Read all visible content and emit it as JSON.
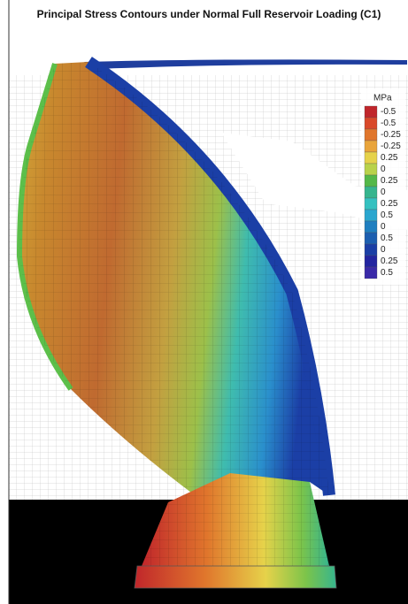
{
  "title": "Principal Stress Contours under Normal Full Reservoir Loading (C1)",
  "legend": {
    "unit": "MPa",
    "items": [
      {
        "label": "-0.5",
        "color": "#c0262b"
      },
      {
        "label": "-0.5",
        "color": "#d9492a"
      },
      {
        "label": "-0.25",
        "color": "#e0762c"
      },
      {
        "label": "-0.25",
        "color": "#e9a43a"
      },
      {
        "label": "0.25",
        "color": "#e6d24a"
      },
      {
        "label": "0",
        "color": "#b9d24a"
      },
      {
        "label": "0.25",
        "color": "#54b848"
      },
      {
        "label": "0",
        "color": "#36b58e"
      },
      {
        "label": "0.25",
        "color": "#35c1c0"
      },
      {
        "label": "0.5",
        "color": "#2aa6cf"
      },
      {
        "label": "0",
        "color": "#1f7fc0"
      },
      {
        "label": "0.5",
        "color": "#1c5fb0"
      },
      {
        "label": "0",
        "color": "#1b3fa6"
      },
      {
        "label": "0.25",
        "color": "#2325a0"
      },
      {
        "label": "0.5",
        "color": "#3a2aa8"
      }
    ]
  }
}
